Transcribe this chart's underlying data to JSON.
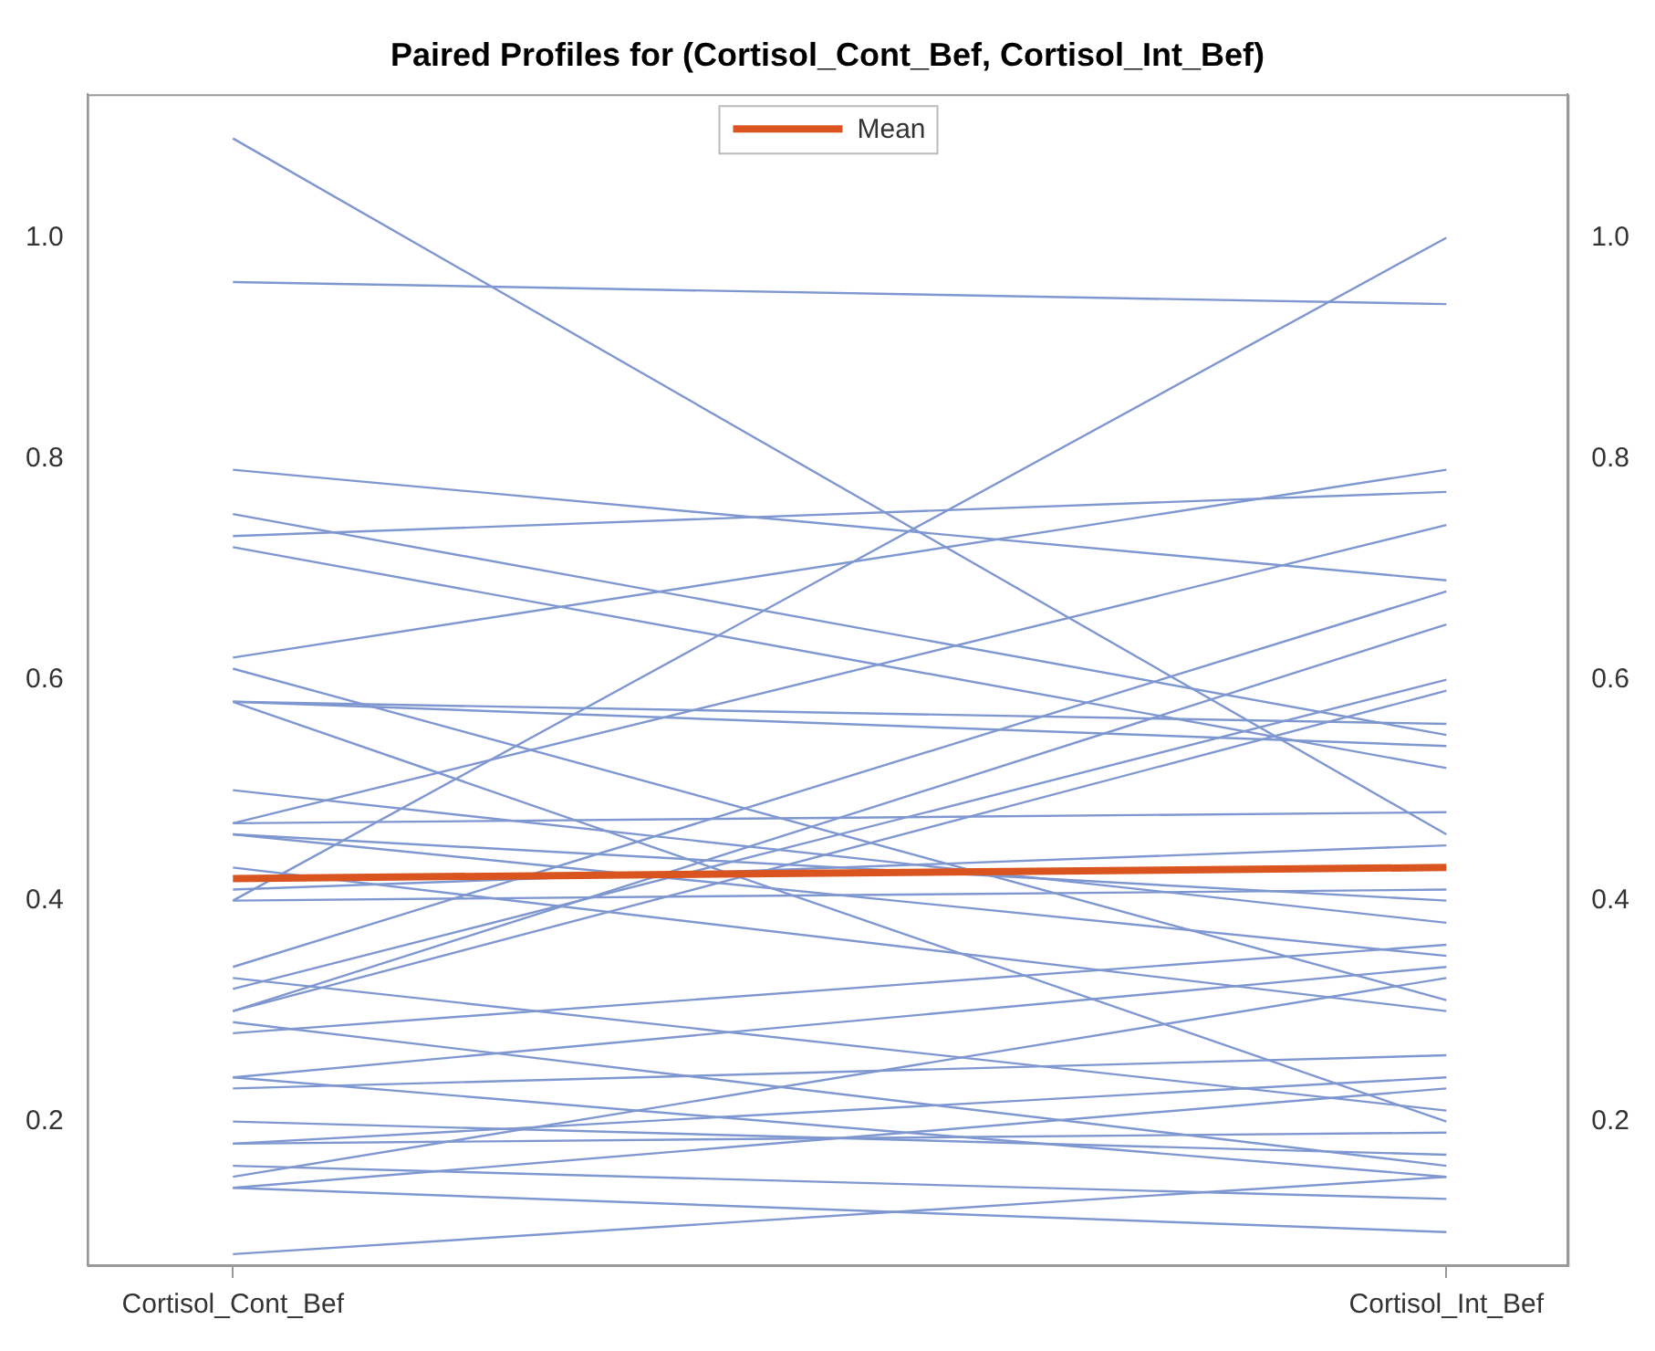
{
  "chart_data": {
    "type": "line",
    "title": "Paired Profiles for (Cortisol_Cont_Bef, Cortisol_Int_Bef)",
    "categories": [
      "Cortisol_Cont_Bef",
      "Cortisol_Int_Bef"
    ],
    "ylim": [
      0.07,
      1.13
    ],
    "yticks": [
      0.2,
      0.4,
      0.6,
      0.8,
      {
        "value": 1,
        "label": "1.0"
      }
    ],
    "y2lim": [
      0.07,
      1.13
    ],
    "y2ticks": [
      0.2,
      0.4,
      0.6,
      0.8,
      {
        "value": 1,
        "label": "1.0"
      }
    ],
    "legend": "top",
    "grid": false,
    "marker": "none",
    "line_style": "solid",
    "series": [
      {
        "color": "#7f97d0",
        "values": [
          1.09,
          0.46
        ]
      },
      {
        "color": "#7f97d0",
        "values": [
          0.96,
          0.94
        ]
      },
      {
        "color": "#7f97d0",
        "values": [
          0.79,
          0.69
        ]
      },
      {
        "color": "#7f97d0",
        "values": [
          0.75,
          0.55
        ]
      },
      {
        "color": "#7f97d0",
        "values": [
          0.73,
          0.77
        ]
      },
      {
        "color": "#7f97d0",
        "values": [
          0.72,
          0.52
        ]
      },
      {
        "color": "#7f97d0",
        "values": [
          0.62,
          0.79
        ]
      },
      {
        "color": "#7f97d0",
        "values": [
          0.61,
          0.31
        ]
      },
      {
        "color": "#7f97d0",
        "values": [
          0.58,
          0.56
        ]
      },
      {
        "color": "#7f97d0",
        "values": [
          0.58,
          0.2
        ]
      },
      {
        "color": "#7f97d0",
        "values": [
          0.58,
          0.54
        ]
      },
      {
        "color": "#7f97d0",
        "values": [
          0.5,
          0.38
        ]
      },
      {
        "color": "#7f97d0",
        "values": [
          0.47,
          0.48
        ]
      },
      {
        "color": "#7f97d0",
        "values": [
          0.47,
          0.74
        ]
      },
      {
        "color": "#7f97d0",
        "values": [
          0.46,
          0.35
        ]
      },
      {
        "color": "#7f97d0",
        "values": [
          0.46,
          0.4
        ]
      },
      {
        "color": "#7f97d0",
        "values": [
          0.43,
          0.3
        ]
      },
      {
        "color": "#7f97d0",
        "values": [
          0.41,
          0.45
        ]
      },
      {
        "color": "#7f97d0",
        "values": [
          0.4,
          1.0
        ]
      },
      {
        "color": "#7f97d0",
        "values": [
          0.4,
          0.41
        ]
      },
      {
        "color": "#7f97d0",
        "values": [
          0.34,
          0.68
        ]
      },
      {
        "color": "#7f97d0",
        "values": [
          0.33,
          0.21
        ]
      },
      {
        "color": "#7f97d0",
        "values": [
          0.32,
          0.6
        ]
      },
      {
        "color": "#7f97d0",
        "values": [
          0.3,
          0.65
        ]
      },
      {
        "color": "#7f97d0",
        "values": [
          0.3,
          0.59
        ]
      },
      {
        "color": "#7f97d0",
        "values": [
          0.29,
          0.16
        ]
      },
      {
        "color": "#7f97d0",
        "values": [
          0.28,
          0.36
        ]
      },
      {
        "color": "#7f97d0",
        "values": [
          0.24,
          0.34
        ]
      },
      {
        "color": "#7f97d0",
        "values": [
          0.24,
          0.15
        ]
      },
      {
        "color": "#7f97d0",
        "values": [
          0.23,
          0.26
        ]
      },
      {
        "color": "#7f97d0",
        "values": [
          0.2,
          0.17
        ]
      },
      {
        "color": "#7f97d0",
        "values": [
          0.18,
          0.19
        ]
      },
      {
        "color": "#7f97d0",
        "values": [
          0.18,
          0.24
        ]
      },
      {
        "color": "#7f97d0",
        "values": [
          0.16,
          0.13
        ]
      },
      {
        "color": "#7f97d0",
        "values": [
          0.15,
          0.33
        ]
      },
      {
        "color": "#7f97d0",
        "values": [
          0.14,
          0.23
        ]
      },
      {
        "color": "#7f97d0",
        "values": [
          0.14,
          0.1
        ]
      },
      {
        "color": "#7f97d0",
        "values": [
          0.08,
          0.15
        ]
      },
      {
        "name": "Mean",
        "color": "#d9541e",
        "values": [
          0.42,
          0.43
        ]
      }
    ]
  }
}
